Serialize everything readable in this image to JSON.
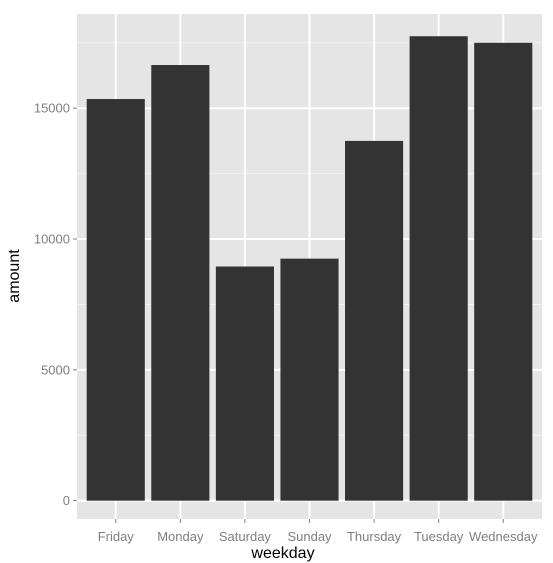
{
  "chart_data": {
    "type": "bar",
    "xlabel": "weekday",
    "ylabel": "amount",
    "categories": [
      "Friday",
      "Monday",
      "Saturday",
      "Sunday",
      "Thursday",
      "Tuesday",
      "Wednesday"
    ],
    "values": [
      15350,
      16650,
      8950,
      9250,
      13750,
      17750,
      17500
    ],
    "ylim": [
      -700,
      18600
    ],
    "yticks": [
      0,
      5000,
      10000,
      15000
    ],
    "ytick_labels": [
      "0",
      "5000",
      "10000",
      "15000"
    ],
    "grid": true,
    "legend": "none",
    "colors": {
      "bar": "#333333",
      "panel": "#e5e5e5",
      "grid_major": "#ffffff",
      "grid_minor": "#f2f2f2",
      "tick_label": "#7f7f7f"
    }
  }
}
